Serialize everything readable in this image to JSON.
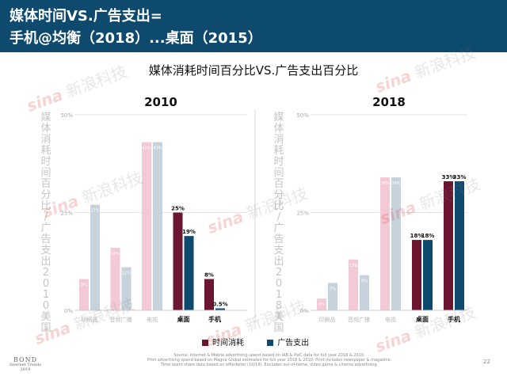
{
  "header": {
    "line1": "媒体时间VS.广告支出=",
    "line2": "手机@均衡（2018）...桌面（2015）"
  },
  "subtitle": "媒体消耗时间百分比VS.广告支出百分比",
  "watermark": {
    "brand": "sina",
    "text": "新浪科技"
  },
  "colors": {
    "header_bg": "#0e4a6e",
    "time_highlight": "#6b1530",
    "ad_highlight": "#0d4a6e",
    "time_faded": "#f3c9d6",
    "ad_faded": "#c6d3dd"
  },
  "legend": [
    {
      "label": "时间消耗",
      "color": "#6b1530"
    },
    {
      "label": "广告支出",
      "color": "#0d4a6e"
    }
  ],
  "footer": {
    "source_lines": [
      "Source: Internet & Mobile advertising spend based on IAB & PwC data for full year 2018 & 2010.",
      "Print advertising spend based on Magna Global estimates for full year 2018 & 2010. Print includes newspaper & magazine.",
      "Time spent share data based on eMarketer (10/18). Excludes out-of-home, video game & cinema advertising."
    ],
    "logo_line1": "BOND",
    "logo_line2": "Internet Trends",
    "logo_line3": "2019",
    "page_number": "22"
  },
  "chart_data": [
    {
      "type": "bar",
      "title": "2010",
      "ylabel": "媒体消耗时间百分比/广告支出2010美国",
      "ylim": [
        0,
        50
      ],
      "yticks": [
        "0%",
        "25%",
        "50%"
      ],
      "categories": [
        "印刷品",
        "音频广播",
        "电视",
        "桌面",
        "手机"
      ],
      "highlighted": [
        false,
        false,
        false,
        true,
        true
      ],
      "series": [
        {
          "name": "时间消耗",
          "values": [
            8,
            16,
            43,
            25,
            8
          ],
          "labels": [
            "8%",
            "16%",
            "43%",
            "25%",
            "8%"
          ]
        },
        {
          "name": "广告支出",
          "values": [
            27,
            11,
            43,
            19,
            0.5
          ],
          "labels": [
            "27%",
            "11%",
            "43%",
            "19%",
            "0.5%"
          ]
        }
      ]
    },
    {
      "type": "bar",
      "title": "2018",
      "ylabel": "媒体消耗时间百分比/广告支出2018美国",
      "ylim": [
        0,
        50
      ],
      "yticks": [
        "0%",
        "25%",
        "50%"
      ],
      "categories": [
        "印刷品",
        "音频广播",
        "电视",
        "桌面",
        "手机"
      ],
      "highlighted": [
        false,
        false,
        false,
        true,
        true
      ],
      "series": [
        {
          "name": "时间消耗",
          "values": [
            3,
            13,
            34,
            18,
            33
          ],
          "labels": [
            "3%",
            "13%",
            "34%",
            "18%",
            "33%"
          ]
        },
        {
          "name": "广告支出",
          "values": [
            7,
            9,
            34,
            18,
            33
          ],
          "labels": [
            "7%",
            "9%",
            "34%",
            "18%",
            "33%"
          ]
        }
      ]
    }
  ]
}
